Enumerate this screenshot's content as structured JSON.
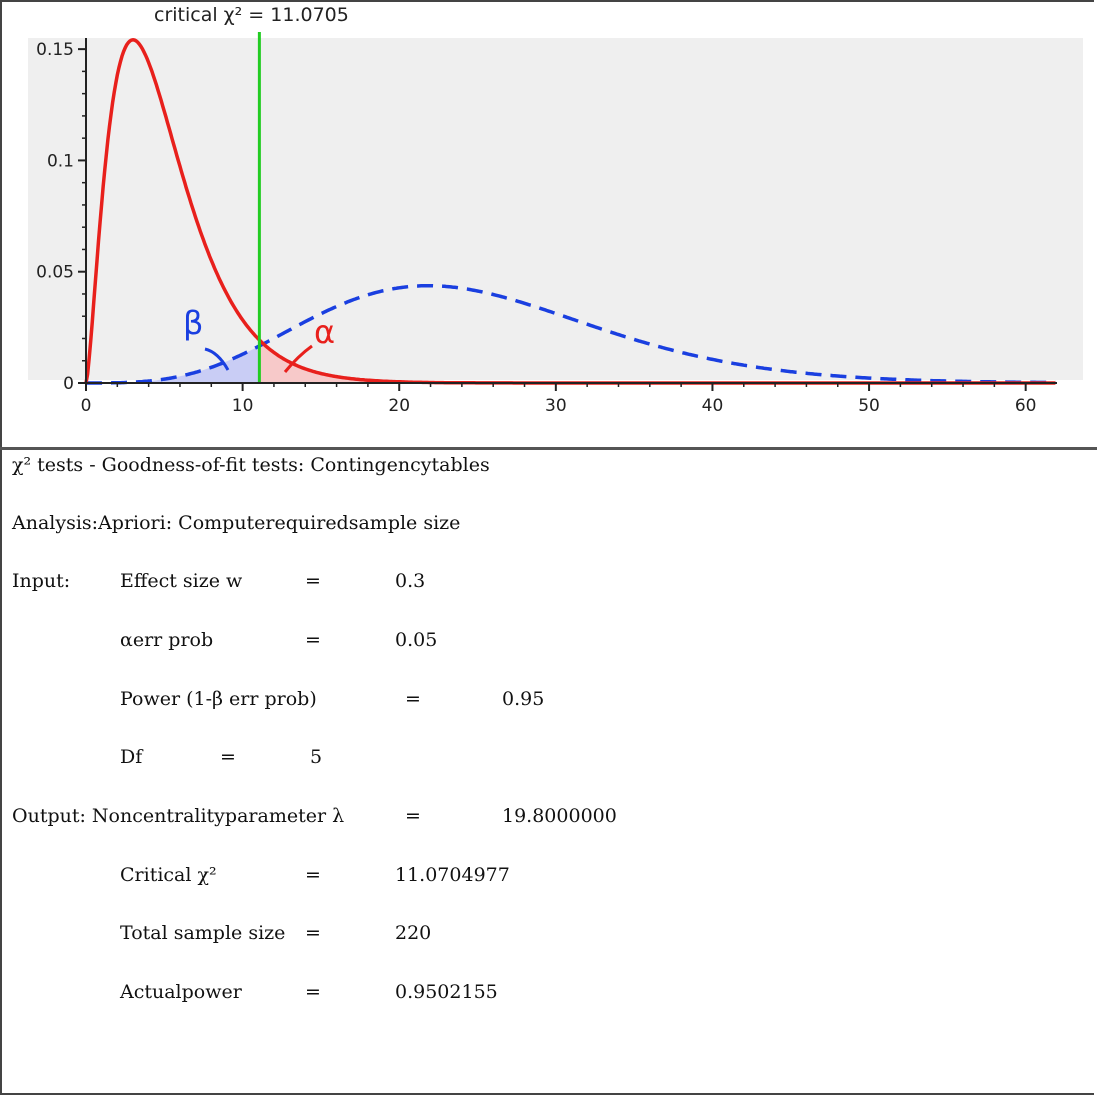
{
  "chart_data": {
    "type": "line",
    "critical_label": "critical χ² = 11.0705",
    "critical_value": 11.0705,
    "xlim": [
      0,
      62
    ],
    "ylim": [
      0,
      0.155
    ],
    "x_ticks": [
      "0",
      "10",
      "20",
      "30",
      "40",
      "50",
      "60"
    ],
    "x_tick_values": [
      0,
      10,
      20,
      30,
      40,
      50,
      60
    ],
    "y_ticks": [
      "0",
      "0.05",
      "0.1",
      "0.15"
    ],
    "y_tick_values": [
      0,
      0.05,
      0.1,
      0.15
    ],
    "series": [
      {
        "style": "solid",
        "color": "#e8201c",
        "df": 5,
        "ncp": 0
      },
      {
        "style": "dashed",
        "color": "#1a3fe0",
        "df": 5,
        "ncp": 19.8
      }
    ],
    "annotations": {
      "beta": "β",
      "alpha": "α"
    },
    "colors": {
      "background": "#efefef",
      "critical_line": "#22cc22",
      "alpha_fill": "#f7c9c9",
      "beta_fill": "#c9cdf5"
    },
    "grid": false
  },
  "result": {
    "test": "χ² tests - Goodness-of-fit tests: Contingencytables",
    "analysis": "Analysis:Apriori: Computerequiredsample size",
    "input_label": "Input:",
    "output_label": "Output: Noncentralityparameter λ",
    "eq": "=",
    "rows": {
      "effect_label": "Effect size w",
      "effect_value": "0.3",
      "alpha_label": "αerr prob",
      "alpha_value": "0.05",
      "power_label": "Power (1-β err prob)",
      "power_value": "0.95",
      "df_label": "Df",
      "df_value": "5",
      "ncp_value": "19.8000000",
      "crit_label": "Critical χ²",
      "crit_value": "11.0704977",
      "n_label": "Total sample size",
      "n_value": "220",
      "actual_label": "Actualpower",
      "actual_value": "0.9502155"
    }
  }
}
